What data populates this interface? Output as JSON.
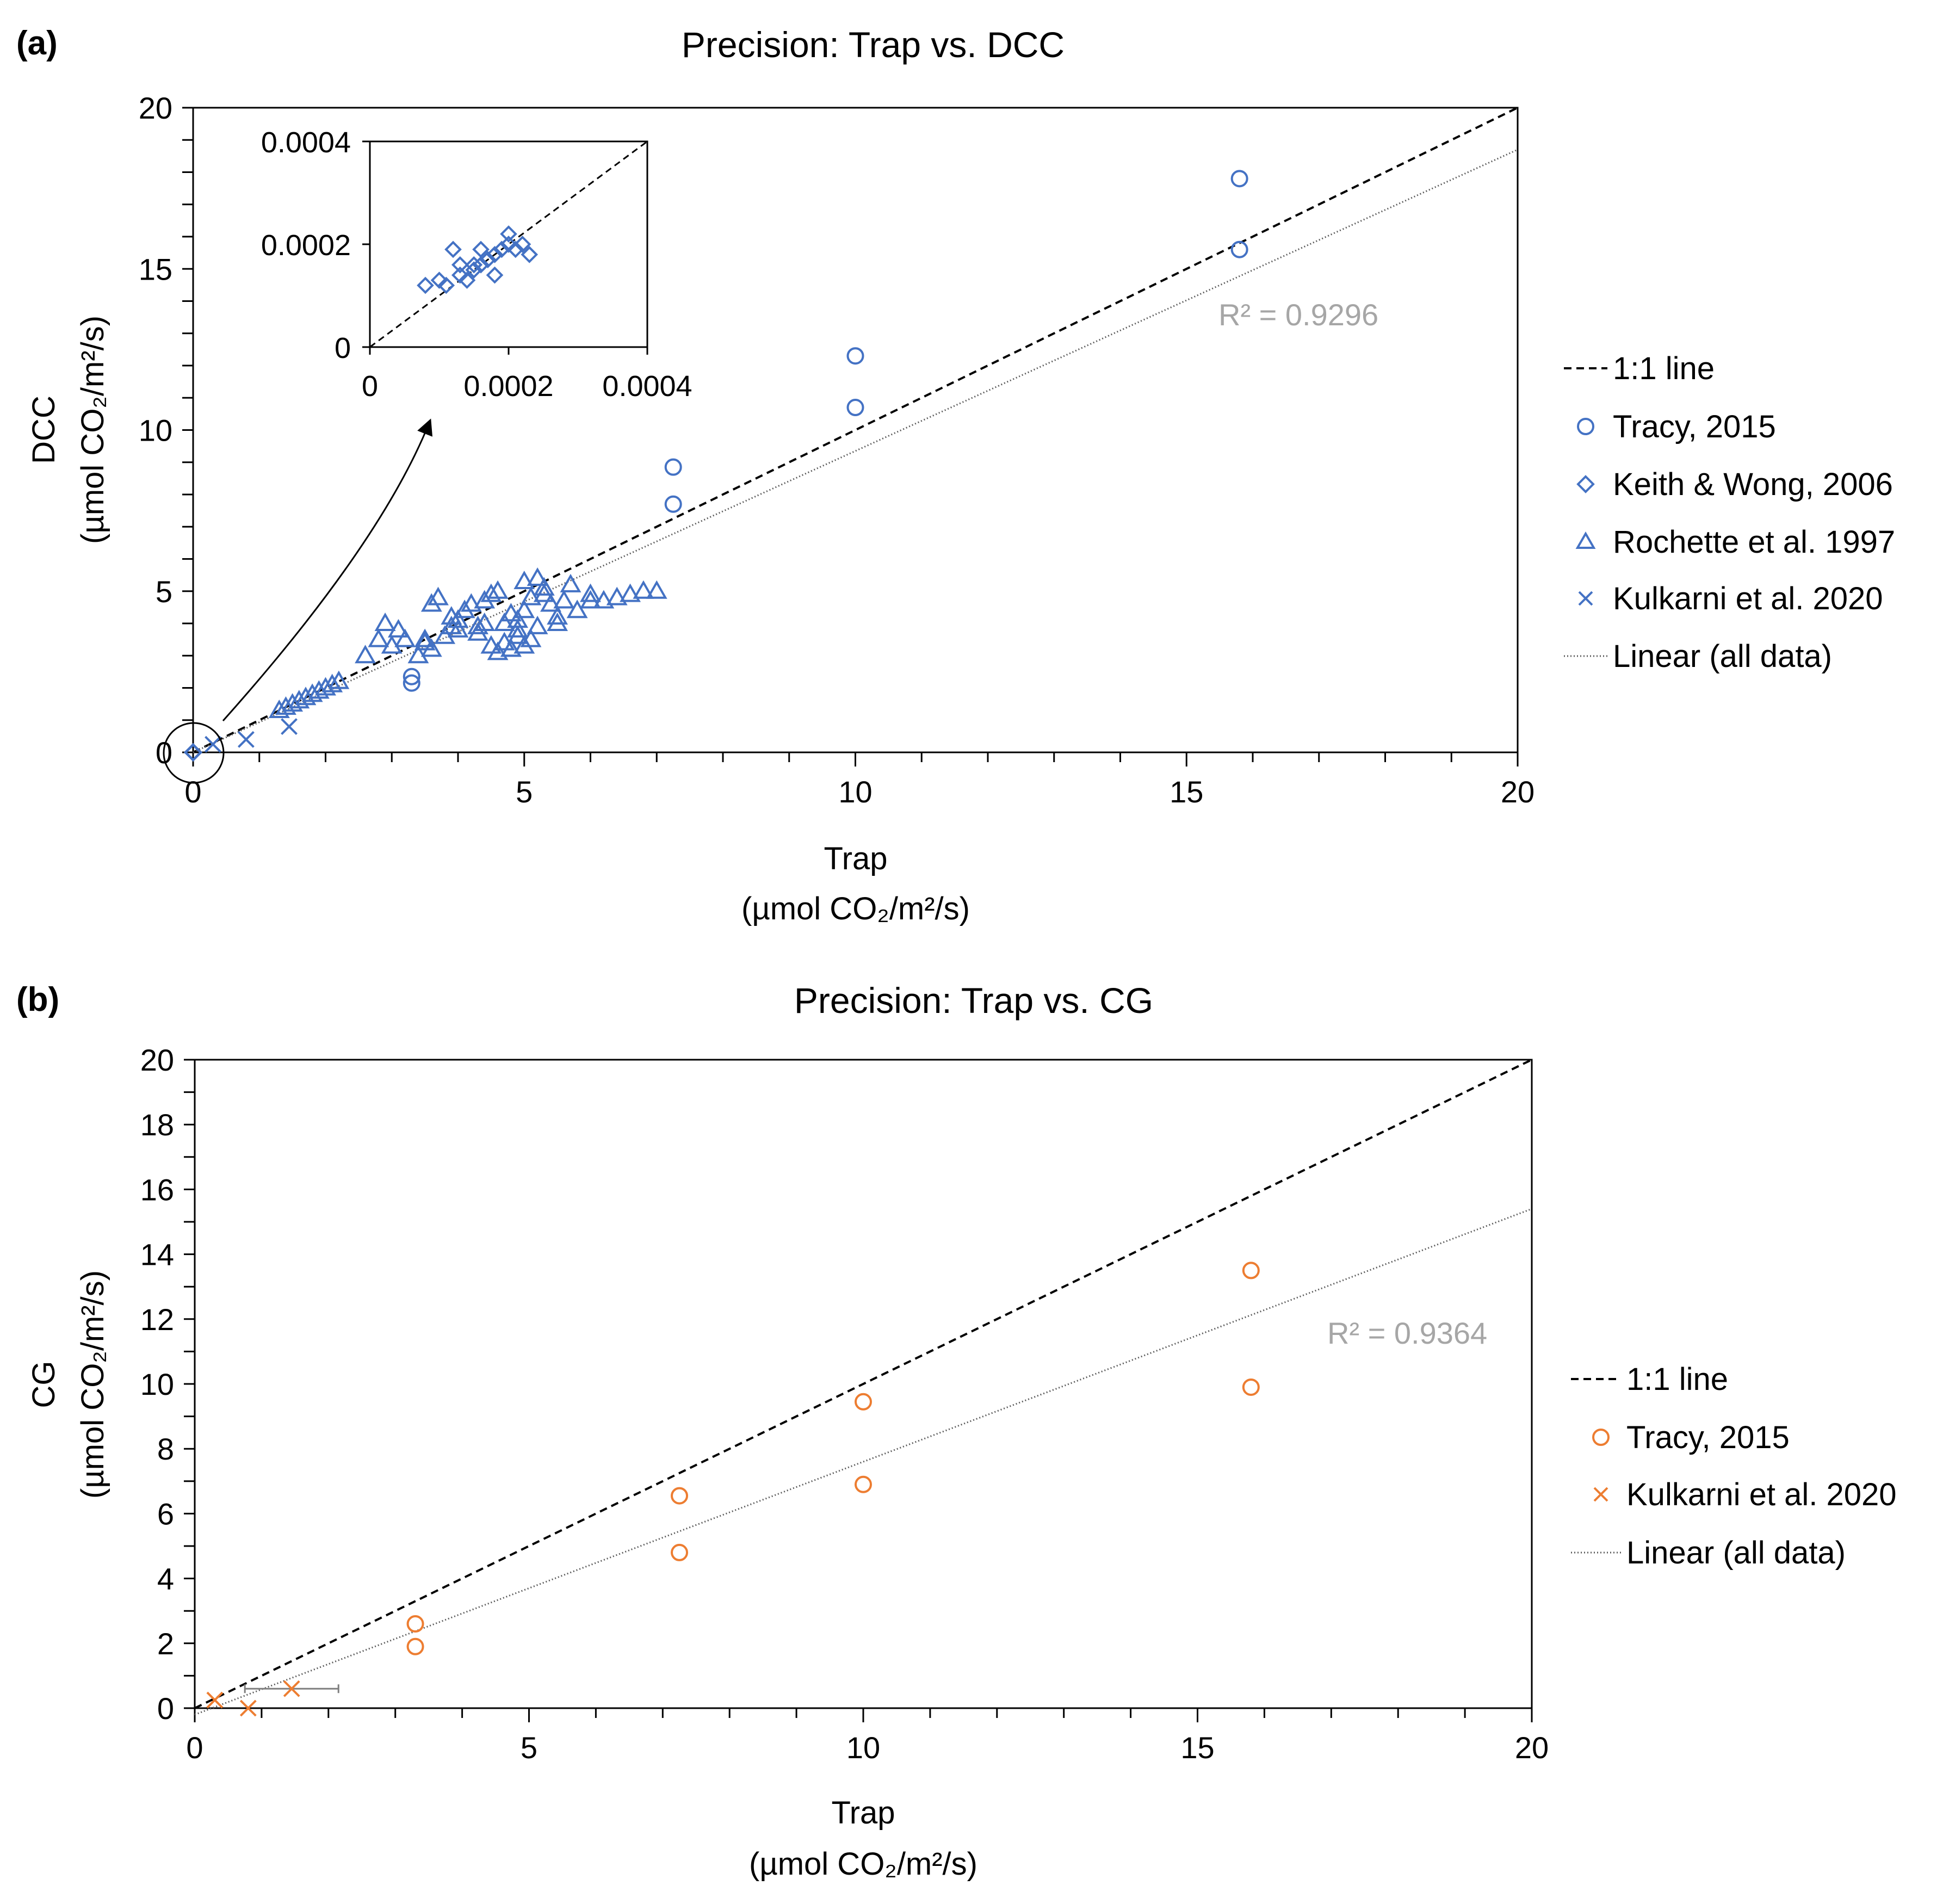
{
  "chart_data": [
    {
      "panel_label": "(a)",
      "type": "scatter",
      "title": "Precision: Trap vs. DCC",
      "xlabel": "Trap",
      "xlabel_unit": "(µmol CO₂/m²/s)",
      "ylabel": "DCC",
      "ylabel_unit": "(µmol CO₂/m²/s)",
      "xlim": [
        0,
        20
      ],
      "ylim": [
        0,
        20
      ],
      "x_ticks": [
        "0",
        "5",
        "10",
        "15",
        "20"
      ],
      "y_ticks": [
        "0",
        "5",
        "10",
        "15",
        "20"
      ],
      "x_tick_values": [
        0,
        5,
        10,
        15,
        20
      ],
      "y_tick_values": [
        0,
        5,
        10,
        15,
        20
      ],
      "grid": false,
      "legend_position": "right",
      "r2_label": "R² = 0.9296",
      "color": "#4472C4",
      "one_to_one": {
        "name": "1:1 line",
        "x": [
          0,
          20
        ],
        "y": [
          0,
          20
        ]
      },
      "trendline": {
        "name": "Linear (all data)",
        "x": [
          0,
          20
        ],
        "y": [
          0,
          18.7
        ]
      },
      "series": [
        {
          "name": "Tracy, 2015",
          "marker": "circle",
          "x": [
            15.8,
            15.8,
            10.0,
            10.0,
            7.25,
            7.25,
            3.3,
            3.3
          ],
          "y": [
            17.8,
            15.6,
            12.3,
            10.7,
            8.85,
            7.7,
            2.35,
            2.15
          ]
        },
        {
          "name": "Keith & Wong, 2006",
          "marker": "diamond",
          "x": [
            8e-05,
            0.00011,
            0.00013,
            0.00015,
            0.00016,
            0.00018,
            0.0002,
            0.00022,
            0.00012,
            0.00017,
            0.00014,
            0.0001,
            0.00019,
            0.00021,
            0.00023,
            0.00016,
            0.00018,
            0.00015,
            0.00013,
            0.0002
          ],
          "y": [
            0.00012,
            0.00012,
            0.00016,
            0.00016,
            0.00016,
            0.00014,
            0.0002,
            0.0002,
            0.00019,
            0.00017,
            0.00013,
            0.00013,
            0.00019,
            0.00019,
            0.00018,
            0.00019,
            0.00018,
            0.00015,
            0.00014,
            0.00022
          ]
        },
        {
          "name": "Rochette et al. 1997",
          "marker": "triangle",
          "x": [
            1.3,
            1.4,
            1.5,
            1.6,
            1.7,
            1.8,
            1.9,
            2.0,
            2.1,
            2.2,
            2.6,
            2.8,
            2.9,
            3.0,
            3.1,
            3.2,
            3.4,
            3.5,
            3.6,
            3.7,
            3.8,
            3.9,
            4.0,
            4.1,
            4.2,
            4.3,
            4.4,
            4.5,
            4.6,
            4.7,
            4.8,
            4.9,
            5.0,
            5.1,
            5.2,
            5.3,
            5.4,
            5.5,
            5.6,
            5.8,
            6.0,
            6.2,
            6.4,
            6.6,
            6.8,
            7.0,
            4.5,
            4.6,
            4.7,
            4.8,
            4.9,
            5.0,
            5.1,
            4.3,
            4.4,
            3.5,
            3.6,
            3.9,
            4.0,
            4.8,
            4.9,
            5.0,
            5.2,
            5.3,
            5.5,
            5.7,
            6.0
          ],
          "y": [
            1.3,
            1.4,
            1.5,
            1.6,
            1.7,
            1.8,
            1.9,
            2.0,
            2.1,
            2.2,
            3.0,
            3.5,
            4.0,
            3.3,
            3.8,
            3.5,
            3.0,
            3.5,
            4.6,
            4.8,
            3.6,
            4.2,
            3.8,
            4.4,
            4.6,
            3.9,
            4.7,
            4.9,
            5.0,
            4.0,
            4.3,
            4.1,
            4.4,
            4.8,
            3.9,
            5.1,
            4.6,
            4.2,
            4.7,
            4.4,
            4.9,
            4.7,
            4.8,
            4.9,
            5.0,
            5.0,
            3.3,
            3.1,
            3.4,
            3.2,
            3.6,
            3.3,
            3.5,
            3.7,
            4.0,
            3.4,
            3.2,
            3.9,
            4.1,
            3.2,
            3.8,
            5.3,
            5.4,
            4.9,
            4.0,
            5.2,
            4.7
          ]
        },
        {
          "name": "Kulkarni et al. 2020",
          "marker": "x",
          "x": [
            0.3,
            0.8,
            1.45
          ],
          "y": [
            0.25,
            0.4,
            0.8
          ]
        }
      ],
      "inset": {
        "xlim": [
          0,
          0.0004
        ],
        "ylim": [
          0,
          0.0004
        ],
        "x_ticks": [
          "0",
          "0.0002",
          "0.0004"
        ],
        "y_ticks": [
          "0",
          "0.0002",
          "0.0004"
        ],
        "x_tick_values": [
          0,
          0.0002,
          0.0004
        ],
        "y_tick_values": [
          0,
          0.0002,
          0.0004
        ],
        "series_ref": "Keith & Wong, 2006"
      }
    },
    {
      "panel_label": "(b)",
      "type": "scatter",
      "title": "Precision: Trap vs. CG",
      "xlabel": "Trap",
      "xlabel_unit": "(µmol CO₂/m²/s)",
      "ylabel": "CG",
      "ylabel_unit": "(µmol CO₂/m²/s)",
      "xlim": [
        0,
        20
      ],
      "ylim": [
        0,
        20
      ],
      "x_ticks": [
        "0",
        "5",
        "10",
        "15",
        "20"
      ],
      "y_ticks": [
        "0",
        "2",
        "4",
        "6",
        "8",
        "10",
        "12",
        "14",
        "16",
        "18",
        "20"
      ],
      "x_tick_values": [
        0,
        5,
        10,
        15,
        20
      ],
      "y_tick_values": [
        0,
        2,
        4,
        6,
        8,
        10,
        12,
        14,
        16,
        18,
        20
      ],
      "grid": false,
      "legend_position": "right",
      "r2_label": "R² = 0.9364",
      "color": "#ED7D31",
      "one_to_one": {
        "name": "1:1 line",
        "x": [
          0,
          20
        ],
        "y": [
          0,
          20
        ]
      },
      "trendline": {
        "name": "Linear (all data)",
        "x": [
          0,
          20
        ],
        "y": [
          -0.2,
          15.4
        ]
      },
      "series": [
        {
          "name": "Tracy, 2015",
          "marker": "circle",
          "x": [
            15.8,
            15.8,
            10.0,
            10.0,
            7.25,
            7.25,
            3.3,
            3.3
          ],
          "y": [
            13.5,
            9.9,
            9.45,
            6.9,
            6.55,
            4.8,
            2.6,
            1.9
          ]
        },
        {
          "name": "Kulkarni et al. 2020",
          "marker": "x",
          "x": [
            0.3,
            0.8,
            1.45
          ],
          "y": [
            0.25,
            0.0,
            0.6
          ],
          "x_error": [
            0,
            0,
            0.7
          ]
        }
      ]
    }
  ]
}
